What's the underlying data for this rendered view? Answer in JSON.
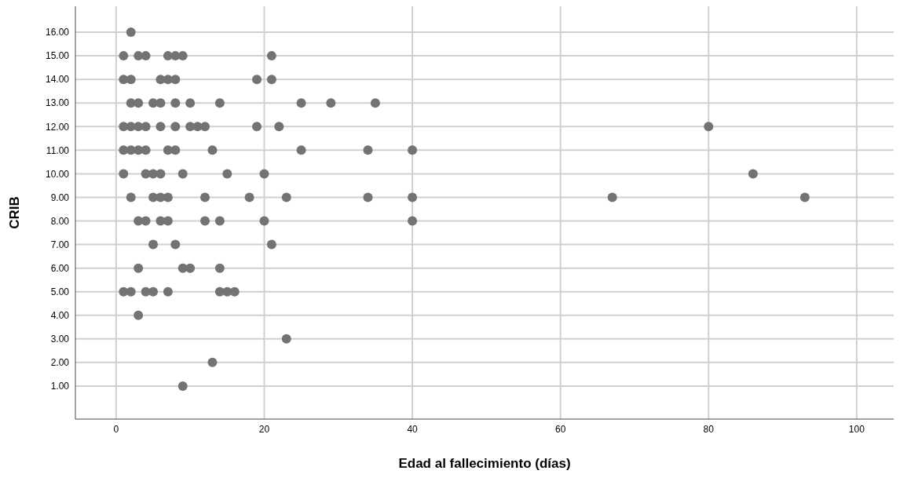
{
  "chart_data": {
    "type": "scatter",
    "xlabel": "Edad al fallecimiento (días)",
    "ylabel": "CRIB",
    "xlim": [
      -5.5,
      105
    ],
    "xticks": [
      0,
      20,
      40,
      60,
      80,
      100
    ],
    "ylim": [
      -0.4,
      17.1
    ],
    "yticks": [
      {
        "value": 1,
        "label": "1.00"
      },
      {
        "value": 2,
        "label": "2.00"
      },
      {
        "value": 3,
        "label": "3.00"
      },
      {
        "value": 4,
        "label": "4.00"
      },
      {
        "value": 5,
        "label": "5.00"
      },
      {
        "value": 6,
        "label": "6.00"
      },
      {
        "value": 7,
        "label": "7.00"
      },
      {
        "value": 8,
        "label": "8.00"
      },
      {
        "value": 9,
        "label": "9.00"
      },
      {
        "value": 10,
        "label": "10.00"
      },
      {
        "value": 11,
        "label": "11.00"
      },
      {
        "value": 12,
        "label": "12.00"
      },
      {
        "value": 13,
        "label": "13.00"
      },
      {
        "value": 14,
        "label": "14.00"
      },
      {
        "value": 15,
        "label": "15.00"
      },
      {
        "value": 16,
        "label": "16.00"
      }
    ],
    "grid": true,
    "marker": "circle",
    "series": [
      {
        "color": "#737373",
        "x": [
          2,
          1,
          3,
          4,
          7,
          8,
          9,
          21,
          1,
          2,
          6,
          7,
          8,
          19,
          21,
          2,
          3,
          5,
          6,
          8,
          10,
          14,
          25,
          29,
          35,
          1,
          2,
          3,
          4,
          6,
          8,
          10,
          11,
          12,
          19,
          22,
          80,
          1,
          2,
          3,
          4,
          7,
          8,
          13,
          25,
          34,
          40,
          1,
          4,
          5,
          6,
          9,
          15,
          20,
          86,
          2,
          5,
          6,
          7,
          12,
          18,
          23,
          34,
          40,
          67,
          93,
          3,
          4,
          6,
          7,
          12,
          14,
          20,
          40,
          5,
          8,
          21,
          3,
          9,
          10,
          14,
          1,
          2,
          4,
          5,
          7,
          14,
          15,
          16,
          3,
          23,
          13,
          9
        ],
        "values": [
          16,
          15,
          15,
          15,
          15,
          15,
          15,
          15,
          14,
          14,
          14,
          14,
          14,
          14,
          14,
          13,
          13,
          13,
          13,
          13,
          13,
          13,
          13,
          13,
          13,
          12,
          12,
          12,
          12,
          12,
          12,
          12,
          12,
          12,
          12,
          12,
          12,
          11,
          11,
          11,
          11,
          11,
          11,
          11,
          11,
          11,
          11,
          10,
          10,
          10,
          10,
          10,
          10,
          10,
          10,
          9,
          9,
          9,
          9,
          9,
          9,
          9,
          9,
          9,
          9,
          9,
          8,
          8,
          8,
          8,
          8,
          8,
          8,
          8,
          7,
          7,
          7,
          6,
          6,
          6,
          6,
          5,
          5,
          5,
          5,
          5,
          5,
          5,
          5,
          4,
          3,
          2,
          1
        ]
      }
    ]
  }
}
